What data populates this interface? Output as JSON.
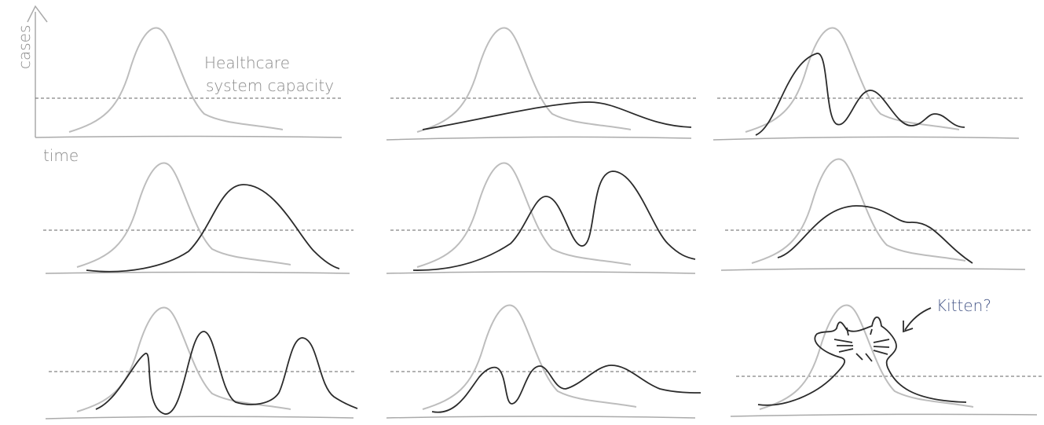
{
  "axis": {
    "y_label": "cases",
    "x_label": "time"
  },
  "annotations": {
    "capacity": [
      "Healthcare",
      "system capacity"
    ],
    "kitten": "Kitten?"
  }
}
